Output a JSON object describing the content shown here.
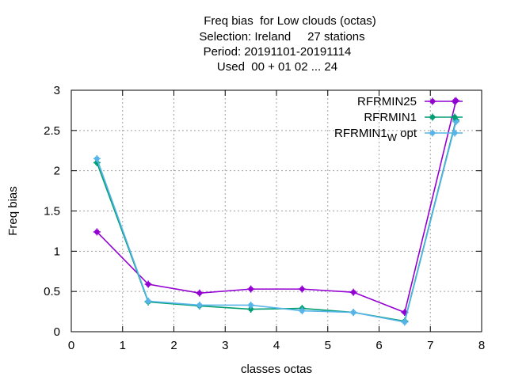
{
  "chart_data": {
    "type": "line",
    "title_lines": [
      "Freq bias  for Low clouds (octas)",
      "Selection: Ireland     27 stations",
      "Period: 20191101-20191114",
      "Used  00 + 01 02 ... 24"
    ],
    "xlabel": "classes octas",
    "ylabel": "Freq bias",
    "xlim": [
      0,
      8
    ],
    "ylim": [
      0,
      3
    ],
    "xticks": [
      "0",
      "1",
      "2",
      "3",
      "4",
      "5",
      "6",
      "7",
      "8"
    ],
    "yticks": [
      "0",
      "0.5",
      "1",
      "1.5",
      "2",
      "2.5",
      "3"
    ],
    "grid": true,
    "legend_position": "top-right",
    "x": [
      0.5,
      1.5,
      2.5,
      3.5,
      4.5,
      5.5,
      6.5,
      7.5
    ],
    "series": [
      {
        "name": "RFRMIN25",
        "color": "#9400d3",
        "values": [
          1.24,
          0.59,
          0.48,
          0.53,
          0.53,
          0.49,
          0.24,
          2.87
        ]
      },
      {
        "name": "RFRMIN1",
        "color": "#009e73",
        "values": [
          2.1,
          0.37,
          0.32,
          0.28,
          0.29,
          0.24,
          0.13,
          2.63
        ]
      },
      {
        "name": "RFRMIN1",
        "name_sub": "W",
        "name_suffix": " opt",
        "color": "#56b4e9",
        "values": [
          2.15,
          0.38,
          0.33,
          0.33,
          0.26,
          0.24,
          0.12,
          2.61
        ]
      }
    ]
  }
}
